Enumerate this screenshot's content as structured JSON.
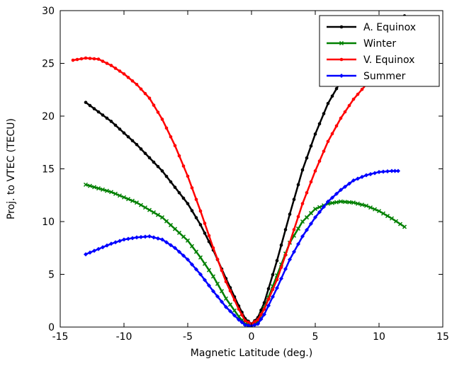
{
  "chart_data": {
    "type": "line",
    "title": "",
    "xlabel": "Magnetic Latitude (deg.)",
    "ylabel": "Proj. to VTEC (TECU)",
    "xlim": [
      -15,
      15
    ],
    "ylim": [
      0,
      30
    ],
    "xticks": [
      -15,
      -10,
      -5,
      0,
      5,
      10,
      15
    ],
    "yticks": [
      0,
      5,
      10,
      15,
      20,
      25,
      30
    ],
    "grid": false,
    "legend_position": "top-right",
    "series": [
      {
        "name": "A. Equinox",
        "color": "#000000",
        "marker": "dot",
        "points": [
          [
            -13,
            21.3
          ],
          [
            -11,
            19.5
          ],
          [
            -9,
            17.3
          ],
          [
            -7,
            14.8
          ],
          [
            -5,
            11.7
          ],
          [
            -4,
            9.7
          ],
          [
            -3,
            7.3
          ],
          [
            -2,
            4.6
          ],
          [
            -1,
            2.0
          ],
          [
            -0.5,
            0.8
          ],
          [
            0,
            0.3
          ],
          [
            0.5,
            0.9
          ],
          [
            1,
            2.3
          ],
          [
            2,
            6.3
          ],
          [
            3,
            10.7
          ],
          [
            4,
            14.9
          ],
          [
            5,
            18.3
          ],
          [
            6,
            21.2
          ],
          [
            7,
            23.3
          ],
          [
            8,
            25.0
          ],
          [
            9,
            26.5
          ],
          [
            10,
            27.8
          ],
          [
            11,
            28.8
          ],
          [
            12,
            29.5
          ]
        ]
      },
      {
        "name": "Winter",
        "color": "#008000",
        "marker": "x",
        "points": [
          [
            -13,
            13.5
          ],
          [
            -11,
            12.8
          ],
          [
            -9,
            11.8
          ],
          [
            -7,
            10.4
          ],
          [
            -5,
            8.2
          ],
          [
            -4,
            6.6
          ],
          [
            -3,
            4.8
          ],
          [
            -2,
            2.7
          ],
          [
            -1,
            1.0
          ],
          [
            -0.5,
            0.3
          ],
          [
            0,
            0.1
          ],
          [
            0.5,
            0.5
          ],
          [
            1,
            1.8
          ],
          [
            2,
            4.9
          ],
          [
            3,
            8.0
          ],
          [
            4,
            10.0
          ],
          [
            5,
            11.2
          ],
          [
            6,
            11.7
          ],
          [
            7,
            11.9
          ],
          [
            8,
            11.8
          ],
          [
            9,
            11.5
          ],
          [
            10,
            11.0
          ],
          [
            11,
            10.3
          ],
          [
            12,
            9.5
          ]
        ]
      },
      {
        "name": "V. Equinox",
        "color": "#ff0000",
        "marker": "dot",
        "points": [
          [
            -14,
            25.3
          ],
          [
            -13,
            25.5
          ],
          [
            -12,
            25.4
          ],
          [
            -11,
            24.8
          ],
          [
            -10,
            24.0
          ],
          [
            -9,
            23.0
          ],
          [
            -8,
            21.7
          ],
          [
            -7,
            19.7
          ],
          [
            -6,
            17.2
          ],
          [
            -5,
            14.3
          ],
          [
            -4,
            11.0
          ],
          [
            -3,
            7.5
          ],
          [
            -2,
            4.3
          ],
          [
            -1,
            1.7
          ],
          [
            -0.5,
            0.6
          ],
          [
            0,
            0.3
          ],
          [
            0.5,
            0.7
          ],
          [
            1,
            1.7
          ],
          [
            2,
            4.5
          ],
          [
            3,
            8.0
          ],
          [
            4,
            11.7
          ],
          [
            5,
            14.8
          ],
          [
            6,
            17.6
          ],
          [
            7,
            19.8
          ],
          [
            8,
            21.6
          ],
          [
            9,
            23.0
          ],
          [
            10,
            24.1
          ],
          [
            11,
            24.9
          ],
          [
            12,
            25.4
          ]
        ]
      },
      {
        "name": "Summer",
        "color": "#0000ff",
        "marker": "diamond",
        "points": [
          [
            -13,
            6.9
          ],
          [
            -12,
            7.4
          ],
          [
            -11,
            7.9
          ],
          [
            -10,
            8.3
          ],
          [
            -9,
            8.5
          ],
          [
            -8,
            8.6
          ],
          [
            -7,
            8.3
          ],
          [
            -6,
            7.5
          ],
          [
            -5,
            6.4
          ],
          [
            -4,
            5.0
          ],
          [
            -3,
            3.4
          ],
          [
            -2,
            1.9
          ],
          [
            -1,
            0.7
          ],
          [
            -0.5,
            0.2
          ],
          [
            0,
            0.1
          ],
          [
            0.5,
            0.3
          ],
          [
            1,
            1.2
          ],
          [
            2,
            3.7
          ],
          [
            3,
            6.4
          ],
          [
            4,
            8.6
          ],
          [
            5,
            10.4
          ],
          [
            6,
            11.9
          ],
          [
            7,
            13.0
          ],
          [
            8,
            13.9
          ],
          [
            9,
            14.4
          ],
          [
            10,
            14.7
          ],
          [
            11,
            14.8
          ],
          [
            11.5,
            14.8
          ]
        ]
      }
    ]
  }
}
